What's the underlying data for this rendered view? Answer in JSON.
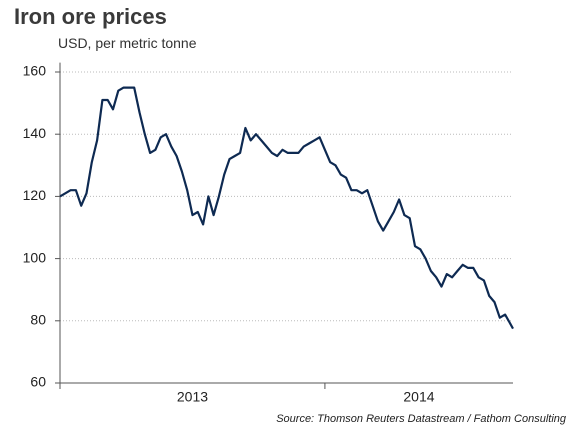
{
  "chart_data": {
    "type": "line",
    "title": "Iron ore prices",
    "subtitle": "USD, per metric tonne",
    "source": "Source: Thomson Reuters Datastream / Fathom Consulting",
    "x": [
      2013.0,
      2013.02,
      2013.04,
      2013.06,
      2013.08,
      2013.1,
      2013.12,
      2013.14,
      2013.16,
      2013.18,
      2013.2,
      2013.22,
      2013.24,
      2013.26,
      2013.28,
      2013.3,
      2013.32,
      2013.34,
      2013.36,
      2013.38,
      2013.4,
      2013.42,
      2013.44,
      2013.46,
      2013.48,
      2013.5,
      2013.52,
      2013.54,
      2013.56,
      2013.58,
      2013.6,
      2013.62,
      2013.64,
      2013.66,
      2013.68,
      2013.7,
      2013.72,
      2013.74,
      2013.76,
      2013.78,
      2013.8,
      2013.82,
      2013.84,
      2013.86,
      2013.88,
      2013.9,
      2013.92,
      2013.94,
      2013.96,
      2013.98,
      2014.0,
      2014.02,
      2014.04,
      2014.06,
      2014.08,
      2014.1,
      2014.12,
      2014.14,
      2014.16,
      2014.18,
      2014.2,
      2014.22,
      2014.24,
      2014.26,
      2014.28,
      2014.3,
      2014.32,
      2014.34,
      2014.36,
      2014.38,
      2014.4,
      2014.42,
      2014.44,
      2014.46,
      2014.48,
      2014.5,
      2014.52,
      2014.54,
      2014.56,
      2014.58,
      2014.6,
      2014.62,
      2014.64,
      2014.66,
      2014.68,
      2014.7,
      2014.71
    ],
    "series": [
      {
        "name": "Iron ore",
        "color": "#0e2a52",
        "values": [
          120,
          121,
          122,
          122,
          117,
          121,
          131,
          138,
          151,
          151,
          148,
          154,
          155,
          155,
          155,
          147,
          140,
          134,
          135,
          139,
          140,
          136,
          133,
          128,
          122,
          114,
          115,
          111,
          120,
          114,
          120,
          127,
          132,
          133,
          134,
          142,
          138,
          140,
          138,
          136,
          134,
          133,
          135,
          134,
          134,
          134,
          136,
          137,
          138,
          139,
          135,
          131,
          130,
          127,
          126,
          122,
          122,
          121,
          122,
          117,
          112,
          109,
          112,
          115,
          119,
          114,
          113,
          104,
          103,
          100,
          96,
          94,
          91,
          95,
          94,
          96,
          98,
          97,
          97,
          94,
          93,
          88,
          86,
          81,
          82,
          79,
          77.5
        ]
      }
    ],
    "xlim": [
      2013.0,
      2014.71
    ],
    "xticks": [
      2013,
      2014
    ],
    "ylim": [
      60,
      163
    ],
    "yticks": [
      60,
      80,
      100,
      120,
      140,
      160
    ],
    "grid": true
  }
}
